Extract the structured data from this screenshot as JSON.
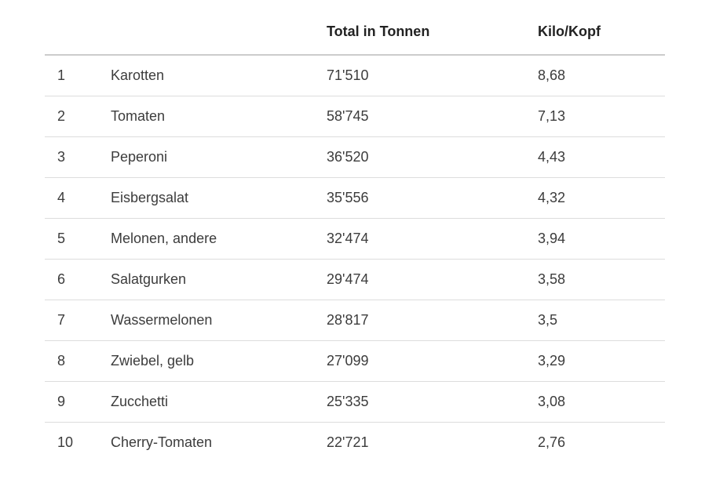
{
  "chart_data": {
    "type": "table",
    "title": "",
    "columns": [
      "",
      "",
      "Total in Tonnen",
      "Kilo/Kopf"
    ],
    "rows": [
      [
        "1",
        "Karotten",
        "71'510",
        "8,68"
      ],
      [
        "2",
        "Tomaten",
        "58'745",
        "7,13"
      ],
      [
        "3",
        "Peperoni",
        "36'520",
        "4,43"
      ],
      [
        "4",
        "Eisbergsalat",
        "35'556",
        "4,32"
      ],
      [
        "5",
        "Melonen, andere",
        "32'474",
        "3,94"
      ],
      [
        "6",
        "Salatgurken",
        "29'474",
        "3,58"
      ],
      [
        "7",
        "Wassermelonen",
        "28'817",
        "3,5"
      ],
      [
        "8",
        "Zwiebel, gelb",
        "27'099",
        "3,29"
      ],
      [
        "9",
        "Zucchetti",
        "25'335",
        "3,08"
      ],
      [
        "10",
        "Cherry-Tomaten",
        "22'721",
        "2,76"
      ]
    ],
    "layout": {
      "grid": "horizontal-row-separators",
      "header_style": "bold",
      "separator_color": "#dddddd",
      "header_border_color": "#cccccc",
      "text_color": "#3c3c3c",
      "header_text_color": "#222222",
      "background": "#ffffff"
    }
  }
}
